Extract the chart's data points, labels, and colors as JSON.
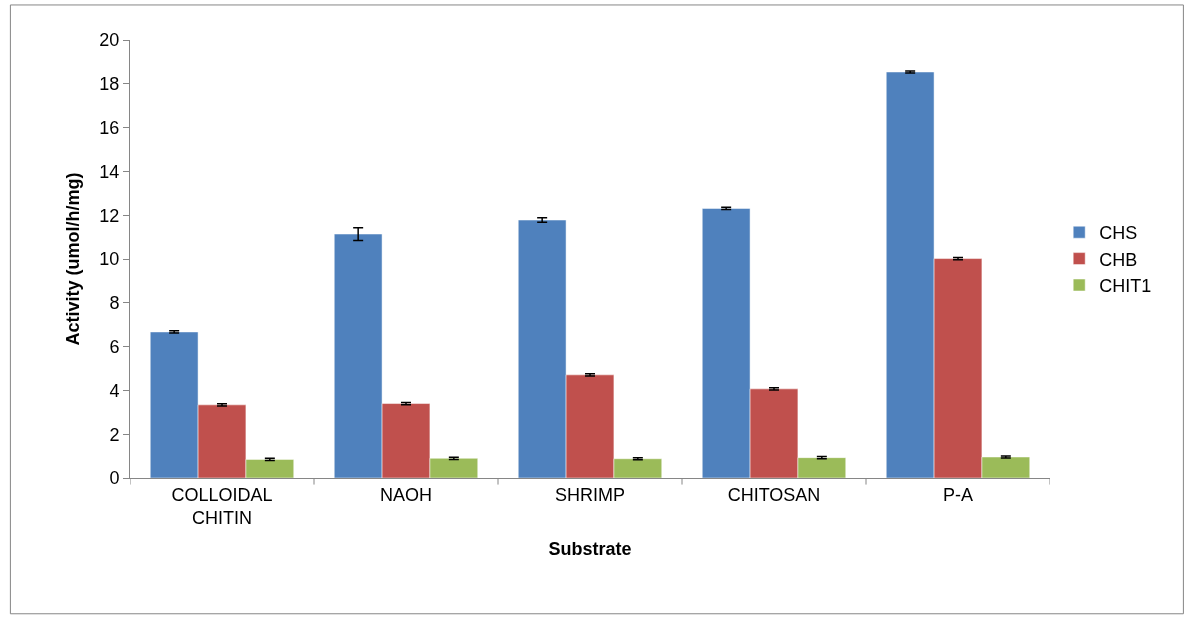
{
  "chart_data": {
    "type": "bar",
    "xlabel": "Substrate",
    "ylabel": "Activity (umol/h/mg)",
    "categories": [
      "COLLOIDAL\nCHITIN",
      "NAOH",
      "SHRIMP",
      "CHITOSAN",
      "P-A"
    ],
    "series": [
      {
        "name": "CHS",
        "color": "#4f81bd",
        "values": [
          6.67,
          11.14,
          11.78,
          12.31,
          18.54
        ],
        "errors": [
          0.05,
          0.29,
          0.1,
          0.05,
          0.05
        ]
      },
      {
        "name": "CHB",
        "color": "#c0504d",
        "values": [
          3.34,
          3.4,
          4.71,
          4.07,
          10.02
        ],
        "errors": [
          0.05,
          0.05,
          0.05,
          0.05,
          0.05
        ]
      },
      {
        "name": "CHIT1",
        "color": "#9bbb59",
        "values": [
          0.85,
          0.9,
          0.88,
          0.93,
          0.96
        ],
        "errors": [
          0.05,
          0.05,
          0.05,
          0.05,
          0.05
        ]
      }
    ],
    "ylim": [
      0,
      20
    ],
    "yticks": [
      0,
      2,
      4,
      6,
      8,
      10,
      12,
      14,
      16,
      18,
      20
    ],
    "legend": "right"
  }
}
